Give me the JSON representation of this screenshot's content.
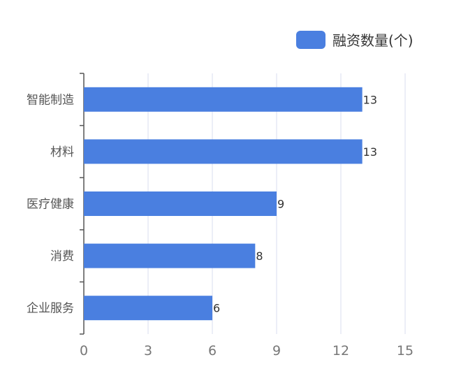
{
  "chart_data": {
    "type": "bar",
    "orientation": "horizontal",
    "categories": [
      "智能制造",
      "材料",
      "医疗健康",
      "消费",
      "企业服务"
    ],
    "series": [
      {
        "name": "融资数量(个)",
        "values": [
          13,
          13,
          9,
          8,
          6
        ],
        "color": "#4a7fe0"
      }
    ],
    "xlim": [
      0,
      15
    ],
    "xticks": [
      "0",
      "3",
      "6",
      "9",
      "12",
      "15"
    ],
    "grid": true,
    "legend_position": "top-right",
    "data_labels": true
  },
  "colors": {
    "bar": "#4a7fe0",
    "grid": "#d8dcef",
    "axis": "#555555",
    "category_text": "#555555",
    "tick_text": "#777777",
    "value_text": "#333333"
  }
}
